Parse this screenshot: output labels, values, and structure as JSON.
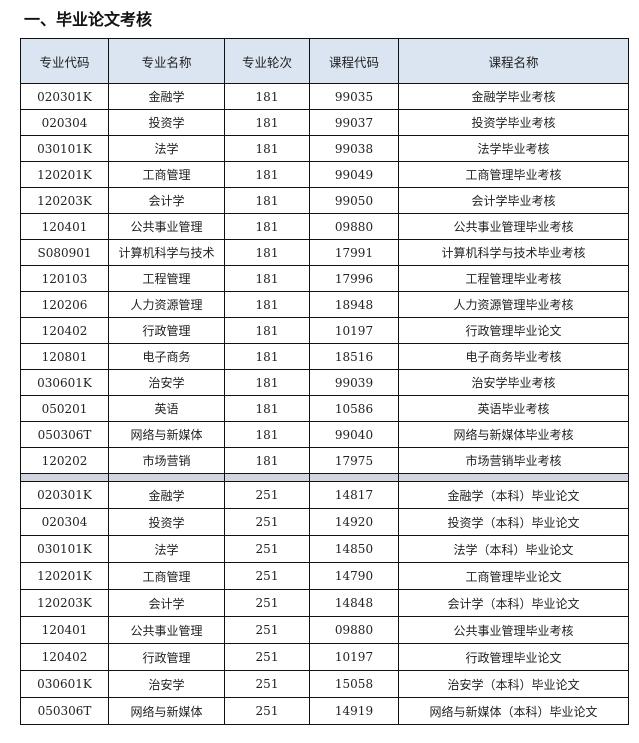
{
  "title": "一、毕业论文考核",
  "headers": [
    "专业代码",
    "专业名称",
    "专业轮次",
    "课程代码",
    "课程名称"
  ],
  "group1": [
    [
      "020301K",
      "金融学",
      "181",
      "99035",
      "金融学毕业考核"
    ],
    [
      "020304",
      "投资学",
      "181",
      "99037",
      "投资学毕业考核"
    ],
    [
      "030101K",
      "法学",
      "181",
      "99038",
      "法学毕业考核"
    ],
    [
      "120201K",
      "工商管理",
      "181",
      "99049",
      "工商管理毕业考核"
    ],
    [
      "120203K",
      "会计学",
      "181",
      "99050",
      "会计学毕业考核"
    ],
    [
      "120401",
      "公共事业管理",
      "181",
      "09880",
      "公共事业管理毕业考核"
    ],
    [
      "S080901",
      "计算机科学与技术",
      "181",
      "17991",
      "计算机科学与技术毕业考核"
    ],
    [
      "120103",
      "工程管理",
      "181",
      "17996",
      "工程管理毕业考核"
    ],
    [
      "120206",
      "人力资源管理",
      "181",
      "18948",
      "人力资源管理毕业考核"
    ],
    [
      "120402",
      "行政管理",
      "181",
      "10197",
      "行政管理毕业论文"
    ],
    [
      "120801",
      "电子商务",
      "181",
      "18516",
      "电子商务毕业考核"
    ],
    [
      "030601K",
      "治安学",
      "181",
      "99039",
      "治安学毕业考核"
    ],
    [
      "050201",
      "英语",
      "181",
      "10586",
      "英语毕业考核"
    ],
    [
      "050306T",
      "网络与新媒体",
      "181",
      "99040",
      "网络与新媒体毕业考核"
    ],
    [
      "120202",
      "市场营销",
      "181",
      "17975",
      "市场营销毕业考核"
    ]
  ],
  "group2": [
    [
      "020301K",
      "金融学",
      "251",
      "14817",
      "金融学（本科）毕业论文"
    ],
    [
      "020304",
      "投资学",
      "251",
      "14920",
      "投资学（本科）毕业论文"
    ],
    [
      "030101K",
      "法学",
      "251",
      "14850",
      "法学（本科）毕业论文"
    ],
    [
      "120201K",
      "工商管理",
      "251",
      "14790",
      "工商管理毕业论文"
    ],
    [
      "120203K",
      "会计学",
      "251",
      "14848",
      "会计学（本科）毕业论文"
    ],
    [
      "120401",
      "公共事业管理",
      "251",
      "09880",
      "公共事业管理毕业考核"
    ],
    [
      "120402",
      "行政管理",
      "251",
      "10197",
      "行政管理毕业论文"
    ],
    [
      "030601K",
      "治安学",
      "251",
      "15058",
      "治安学（本科）毕业论文"
    ],
    [
      "050306T",
      "网络与新媒体",
      "251",
      "14919",
      "网络与新媒体（本科）毕业论文"
    ]
  ]
}
